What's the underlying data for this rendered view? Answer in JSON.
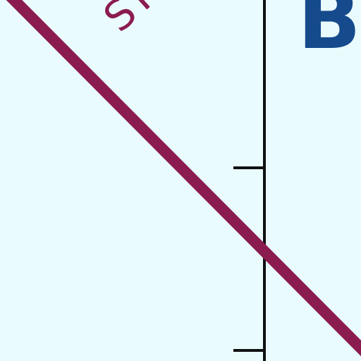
{
  "chart_data": {
    "type": "line",
    "title": "",
    "corner_label": "B",
    "series": [
      {
        "name": "ST",
        "label_visible": "ST",
        "color": "#8b1c50",
        "x": [
          0,
          10
        ],
        "y": [
          10,
          0
        ]
      }
    ],
    "axis": {
      "orientation": "vertical",
      "color": "#111111",
      "tick_labels": [
        "",
        ""
      ],
      "ticks": [
        6,
        1
      ]
    },
    "xlim": [
      0,
      10
    ],
    "ylim": [
      0,
      10
    ],
    "grid": false,
    "background": "#eafbfd"
  }
}
